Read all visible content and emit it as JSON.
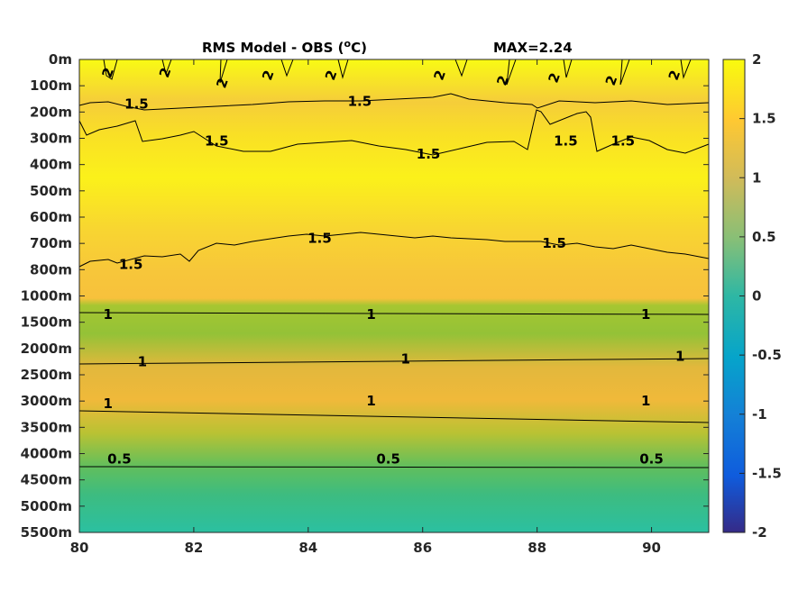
{
  "chart_data": {
    "type": "heatmap",
    "title_left": "RMS Model - OBS (",
    "title_unit_sup": "o",
    "title_unit_rest": "C)",
    "title_max": "MAX=2.24",
    "x_ticks": [
      "80",
      "82",
      "84",
      "86",
      "88",
      "90"
    ],
    "x_values": [
      80,
      82,
      84,
      86,
      88,
      90
    ],
    "xlim": [
      80,
      91
    ],
    "y_ticks": [
      "0m",
      "100m",
      "200m",
      "300m",
      "400m",
      "500m",
      "600m",
      "700m",
      "800m",
      "1000m",
      "1500m",
      "2000m",
      "2500m",
      "3000m",
      "3500m",
      "4000m",
      "4500m",
      "5000m",
      "5500m"
    ],
    "colorbar": {
      "ticks": [
        "2",
        "1.5",
        "1",
        "0.5",
        "0",
        "-0.5",
        "-1",
        "-1.5",
        "-2"
      ],
      "values": [
        2,
        1.5,
        1,
        0.5,
        0,
        -0.5,
        -1,
        -1.5,
        -2
      ],
      "range": [
        -2,
        2
      ],
      "colormap": "parula"
    },
    "depth_profile": [
      2.0,
      1.75,
      1.55,
      1.5,
      1.75,
      1.9,
      1.75,
      1.6,
      1.5,
      1.45,
      0.95,
      0.85,
      1.1,
      1.3,
      1.15,
      0.75,
      0.45,
      0.35,
      0.3
    ],
    "contour_labels": [
      {
        "text": "2",
        "x": 80.5,
        "level": 0.5
      },
      {
        "text": "2",
        "x": 81.5,
        "level": 0.5
      },
      {
        "text": "2",
        "x": 82.5,
        "level": 0.9
      },
      {
        "text": "2",
        "x": 83.3,
        "level": 0.6
      },
      {
        "text": "2",
        "x": 84.4,
        "level": 0.6
      },
      {
        "text": "2",
        "x": 86.3,
        "level": 0.6
      },
      {
        "text": "2",
        "x": 87.4,
        "level": 0.8
      },
      {
        "text": "2",
        "x": 88.3,
        "level": 0.7
      },
      {
        "text": "2",
        "x": 89.3,
        "level": 0.8
      },
      {
        "text": "2",
        "x": 90.4,
        "level": 0.6
      },
      {
        "text": "1.5",
        "x": 81.0,
        "level": 1.7
      },
      {
        "text": "1.5",
        "x": 84.9,
        "level": 1.6
      },
      {
        "text": "1.5",
        "x": 82.4,
        "level": 3.1
      },
      {
        "text": "1.5",
        "x": 86.1,
        "level": 3.6
      },
      {
        "text": "1.5",
        "x": 88.5,
        "level": 3.1
      },
      {
        "text": "1.5",
        "x": 89.5,
        "level": 3.1
      },
      {
        "text": "1.5",
        "x": 80.9,
        "level": 7.8
      },
      {
        "text": "1.5",
        "x": 84.2,
        "level": 6.8
      },
      {
        "text": "1.5",
        "x": 88.3,
        "level": 7.0
      },
      {
        "text": "1",
        "x": 80.5,
        "level": 9.7
      },
      {
        "text": "1",
        "x": 85.1,
        "level": 9.7
      },
      {
        "text": "1",
        "x": 89.9,
        "level": 9.7
      },
      {
        "text": "1",
        "x": 81.1,
        "level": 11.5
      },
      {
        "text": "1",
        "x": 85.7,
        "level": 11.4
      },
      {
        "text": "1",
        "x": 90.5,
        "level": 11.3
      },
      {
        "text": "1",
        "x": 80.5,
        "level": 13.1
      },
      {
        "text": "1",
        "x": 85.1,
        "level": 13.0
      },
      {
        "text": "1",
        "x": 89.9,
        "level": 13.0
      },
      {
        "text": "0.5",
        "x": 80.7,
        "level": 15.2
      },
      {
        "text": "0.5",
        "x": 85.4,
        "level": 15.2
      },
      {
        "text": "0.5",
        "x": 90.0,
        "level": 15.2
      }
    ]
  }
}
